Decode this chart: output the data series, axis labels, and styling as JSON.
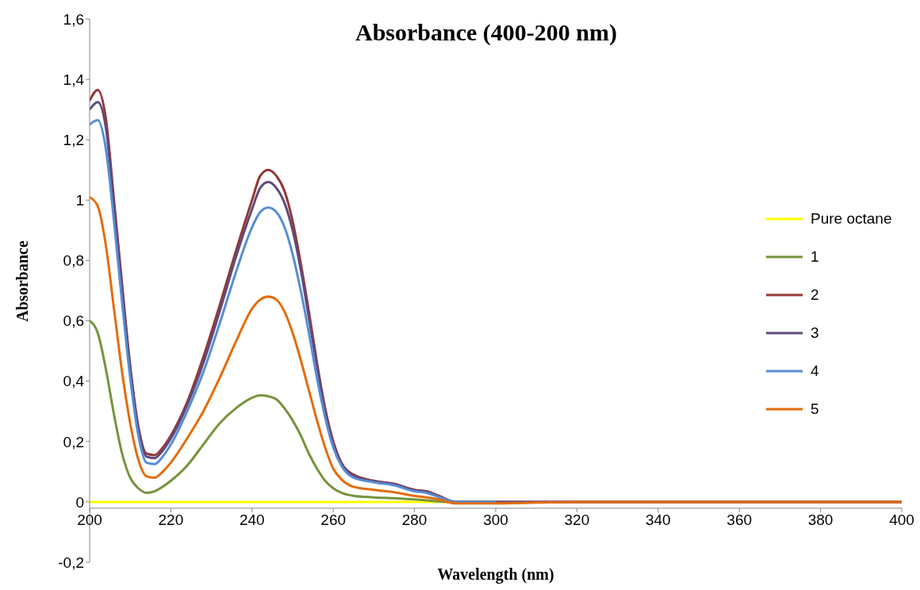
{
  "chart_data": {
    "type": "line",
    "title": "Absorbance (400-200 nm)",
    "xlabel": "Wavelength (nm)",
    "ylabel": "Absorbance",
    "x": [
      200,
      202,
      204,
      206,
      208,
      210,
      212,
      214,
      216,
      218,
      220,
      224,
      228,
      232,
      236,
      240,
      242,
      244,
      246,
      248,
      250,
      252,
      254,
      256,
      258,
      260,
      262,
      265,
      270,
      275,
      280,
      283,
      286,
      290,
      300,
      320,
      350,
      400
    ],
    "series": [
      {
        "name": "Pure octane",
        "color": "#ffff00",
        "values": [
          0,
          0,
          0,
          0,
          0,
          0,
          0,
          0,
          0,
          0,
          0,
          0,
          0,
          0,
          0,
          0,
          0,
          0,
          0,
          0,
          0,
          0,
          0,
          0,
          0,
          0,
          0,
          0,
          0,
          0,
          0,
          0,
          0,
          0,
          0,
          null,
          null,
          null
        ]
      },
      {
        "name": "1",
        "color": "#77933c",
        "values": [
          0.6,
          0.56,
          0.44,
          0.29,
          0.16,
          0.08,
          0.045,
          0.03,
          0.035,
          0.05,
          0.07,
          0.12,
          0.19,
          0.26,
          0.31,
          0.345,
          0.353,
          0.35,
          0.34,
          0.31,
          0.27,
          0.22,
          0.16,
          0.11,
          0.07,
          0.045,
          0.03,
          0.02,
          0.015,
          0.012,
          0.008,
          0.005,
          0.002,
          0,
          null,
          null,
          null,
          null
        ]
      },
      {
        "name": "2",
        "color": "#953735",
        "values": [
          1.33,
          1.365,
          1.27,
          1.0,
          0.72,
          0.45,
          0.25,
          0.16,
          0.155,
          0.18,
          0.22,
          0.33,
          0.48,
          0.65,
          0.83,
          1.0,
          1.08,
          1.1,
          1.08,
          1.03,
          0.93,
          0.79,
          0.63,
          0.46,
          0.31,
          0.2,
          0.13,
          0.09,
          0.07,
          0.06,
          0.04,
          0.035,
          0.02,
          0,
          0,
          0,
          0,
          0
        ]
      },
      {
        "name": "3",
        "color": "#604a7b",
        "values": [
          1.3,
          1.325,
          1.24,
          0.98,
          0.7,
          0.44,
          0.24,
          0.15,
          0.145,
          0.17,
          0.21,
          0.32,
          0.46,
          0.63,
          0.81,
          0.97,
          1.04,
          1.06,
          1.04,
          0.99,
          0.9,
          0.77,
          0.61,
          0.45,
          0.3,
          0.19,
          0.125,
          0.085,
          0.068,
          0.058,
          0.038,
          0.033,
          0.018,
          0,
          0,
          0,
          0,
          0
        ]
      },
      {
        "name": "4",
        "color": "#558ed5",
        "values": [
          1.25,
          1.265,
          1.17,
          0.93,
          0.66,
          0.41,
          0.22,
          0.13,
          0.125,
          0.15,
          0.19,
          0.3,
          0.43,
          0.59,
          0.76,
          0.91,
          0.96,
          0.975,
          0.96,
          0.91,
          0.82,
          0.7,
          0.56,
          0.41,
          0.28,
          0.18,
          0.12,
          0.08,
          0.065,
          0.055,
          0.035,
          0.03,
          0.016,
          0,
          0,
          null,
          null,
          null
        ]
      },
      {
        "name": "5",
        "color": "#e46c0a",
        "values": [
          1.01,
          0.98,
          0.85,
          0.64,
          0.43,
          0.26,
          0.14,
          0.085,
          0.08,
          0.1,
          0.13,
          0.21,
          0.3,
          0.41,
          0.53,
          0.64,
          0.67,
          0.68,
          0.67,
          0.63,
          0.56,
          0.47,
          0.37,
          0.27,
          0.18,
          0.11,
          0.075,
          0.05,
          0.04,
          0.032,
          0.02,
          0.015,
          0.008,
          -0.005,
          -0.005,
          0,
          0,
          0
        ]
      }
    ],
    "xlim": [
      200,
      400
    ],
    "xticks": [
      200,
      220,
      240,
      260,
      280,
      300,
      320,
      340,
      360,
      380,
      400
    ],
    "ylim": [
      -0.2,
      1.6
    ],
    "yticks": [
      {
        "value": -0.2,
        "label": "-0,2"
      },
      0,
      {
        "value": 0.2,
        "label": "0,2"
      },
      {
        "value": 0.4,
        "label": "0,4"
      },
      {
        "value": 0.6,
        "label": "0,6"
      },
      {
        "value": 0.8,
        "label": "0,8"
      },
      1,
      {
        "value": 1.2,
        "label": "1,2"
      },
      {
        "value": 1.4,
        "label": "1,4"
      },
      {
        "value": 1.6,
        "label": "1,6"
      }
    ],
    "grid": false,
    "legend": "right",
    "marker": "none",
    "line_style": "solid"
  }
}
